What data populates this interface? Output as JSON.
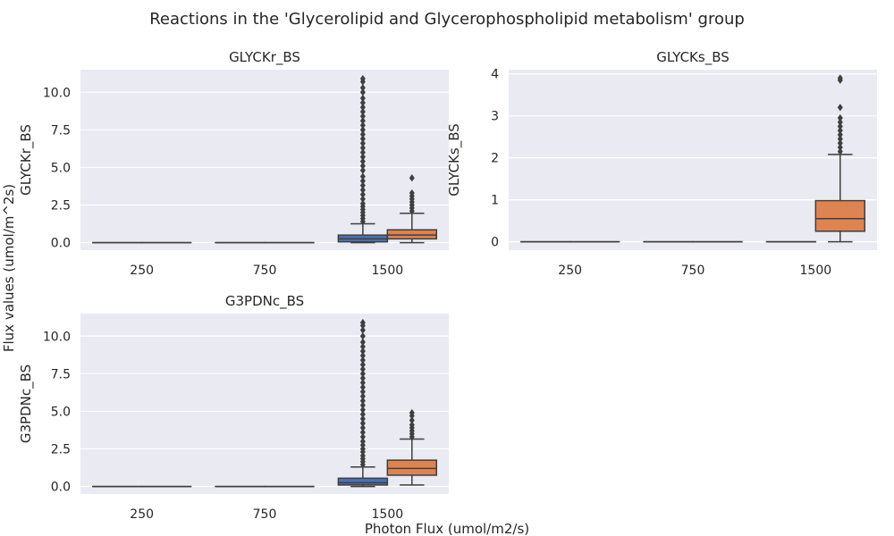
{
  "figure": {
    "suptitle": "Reactions in the 'Glycerolipid and Glycerophospholipid metabolism' group",
    "supylabel": "Flux values (umol/m^2s)",
    "supxlabel": "Photon Flux (umol/m2/s)"
  },
  "colors": {
    "background": "#eaeaf2",
    "grid": "#ffffff",
    "box_outline": "#3f3f3f",
    "series_1": "#4c72b0",
    "series_2": "#dd8452"
  },
  "chart_data": [
    {
      "type": "box",
      "title": "GLYCKr_BS",
      "ylabel": "GLYCKr_BS",
      "categories": [
        "250",
        "750",
        "1500"
      ],
      "ylim": [
        -0.5,
        11.5
      ],
      "yticks": [
        "0.0",
        "2.5",
        "5.0",
        "7.5",
        "10.0"
      ],
      "yticks_values": [
        0,
        2.5,
        5,
        7.5,
        10
      ],
      "grid": true,
      "boxes": [
        {
          "category": "250",
          "series": 1,
          "whislo": 0,
          "q1": 0,
          "med": 0,
          "q3": 0,
          "whishi": 0,
          "fliers": []
        },
        {
          "category": "250",
          "series": 2,
          "whislo": 0,
          "q1": 0,
          "med": 0,
          "q3": 0,
          "whishi": 0,
          "fliers": []
        },
        {
          "category": "750",
          "series": 1,
          "whislo": 0,
          "q1": 0,
          "med": 0,
          "q3": 0,
          "whishi": 0,
          "fliers": []
        },
        {
          "category": "750",
          "series": 2,
          "whislo": 0,
          "q1": 0,
          "med": 0,
          "q3": 0,
          "whishi": 0,
          "fliers": []
        },
        {
          "category": "1500",
          "series": 1,
          "whislo": 0,
          "q1": 0.05,
          "med": 0.25,
          "q3": 0.5,
          "whishi": 1.25,
          "fliers": [
            1.4,
            1.6,
            1.8,
            2.0,
            2.2,
            2.4,
            2.6,
            2.9,
            3.2,
            3.5,
            3.8,
            4.1,
            4.4,
            4.8,
            5.1,
            5.4,
            5.7,
            6.0,
            6.3,
            6.6,
            6.9,
            7.2,
            7.5,
            7.8,
            8.1,
            8.4,
            8.7,
            9.0,
            9.3,
            9.6,
            10.0,
            10.3,
            10.7,
            10.9
          ]
        },
        {
          "category": "1500",
          "series": 2,
          "whislo": 0,
          "q1": 0.25,
          "med": 0.5,
          "q3": 0.85,
          "whishi": 1.95,
          "fliers": [
            2.1,
            2.3,
            2.5,
            2.7,
            2.9,
            3.1,
            3.3,
            4.3
          ]
        }
      ]
    },
    {
      "type": "box",
      "title": "GLYCKs_BS",
      "ylabel": "GLYCKs_BS",
      "categories": [
        "250",
        "750",
        "1500"
      ],
      "ylim": [
        -0.2,
        4.1
      ],
      "yticks": [
        "0",
        "1",
        "2",
        "3",
        "4"
      ],
      "yticks_values": [
        0,
        1,
        2,
        3,
        4
      ],
      "grid": true,
      "boxes": [
        {
          "category": "250",
          "series": 1,
          "whislo": 0,
          "q1": 0,
          "med": 0,
          "q3": 0,
          "whishi": 0,
          "fliers": []
        },
        {
          "category": "250",
          "series": 2,
          "whislo": 0,
          "q1": 0,
          "med": 0,
          "q3": 0,
          "whishi": 0,
          "fliers": []
        },
        {
          "category": "750",
          "series": 1,
          "whislo": 0,
          "q1": 0,
          "med": 0,
          "q3": 0,
          "whishi": 0,
          "fliers": []
        },
        {
          "category": "750",
          "series": 2,
          "whislo": 0,
          "q1": 0,
          "med": 0,
          "q3": 0,
          "whishi": 0,
          "fliers": []
        },
        {
          "category": "1500",
          "series": 1,
          "whislo": 0,
          "q1": 0,
          "med": 0,
          "q3": 0,
          "whishi": 0,
          "fliers": []
        },
        {
          "category": "1500",
          "series": 2,
          "whislo": 0,
          "q1": 0.25,
          "med": 0.55,
          "q3": 0.98,
          "whishi": 2.08,
          "fliers": [
            2.15,
            2.25,
            2.35,
            2.45,
            2.55,
            2.65,
            2.75,
            2.85,
            2.95,
            3.2,
            3.85,
            3.9
          ]
        }
      ]
    },
    {
      "type": "box",
      "title": "G3PDNc_BS",
      "ylabel": "G3PDNc_BS",
      "categories": [
        "250",
        "750",
        "1500"
      ],
      "ylim": [
        -0.5,
        11.5
      ],
      "yticks": [
        "0.0",
        "2.5",
        "5.0",
        "7.5",
        "10.0"
      ],
      "yticks_values": [
        0,
        2.5,
        5,
        7.5,
        10
      ],
      "grid": true,
      "boxes": [
        {
          "category": "250",
          "series": 1,
          "whislo": 0,
          "q1": 0,
          "med": 0,
          "q3": 0,
          "whishi": 0,
          "fliers": []
        },
        {
          "category": "250",
          "series": 2,
          "whislo": 0,
          "q1": 0,
          "med": 0,
          "q3": 0,
          "whishi": 0,
          "fliers": []
        },
        {
          "category": "750",
          "series": 1,
          "whislo": 0,
          "q1": 0,
          "med": 0,
          "q3": 0,
          "whishi": 0,
          "fliers": []
        },
        {
          "category": "750",
          "series": 2,
          "whislo": 0,
          "q1": 0,
          "med": 0,
          "q3": 0,
          "whishi": 0,
          "fliers": []
        },
        {
          "category": "1500",
          "series": 1,
          "whislo": 0,
          "q1": 0.1,
          "med": 0.25,
          "q3": 0.55,
          "whishi": 1.3,
          "fliers": [
            1.45,
            1.65,
            1.85,
            2.05,
            2.3,
            2.5,
            2.75,
            3.0,
            3.3,
            3.6,
            3.9,
            4.2,
            4.5,
            4.8,
            5.1,
            5.4,
            5.7,
            6.0,
            6.3,
            6.6,
            6.9,
            7.2,
            7.5,
            7.8,
            8.1,
            8.4,
            8.7,
            9.0,
            9.3,
            9.6,
            10.0,
            10.4,
            10.7,
            10.9
          ]
        },
        {
          "category": "1500",
          "series": 2,
          "whislo": 0.1,
          "q1": 0.75,
          "med": 1.2,
          "q3": 1.75,
          "whishi": 3.15,
          "fliers": [
            3.3,
            3.5,
            3.7,
            3.9,
            4.1,
            4.4,
            4.7,
            4.9
          ]
        }
      ]
    }
  ]
}
